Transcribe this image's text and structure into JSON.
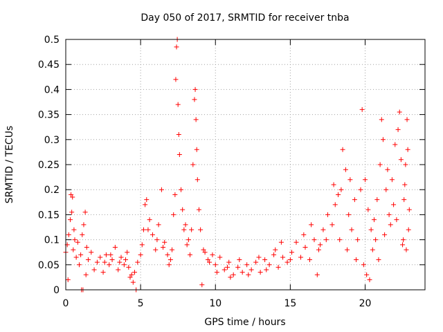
{
  "chart_data": {
    "type": "scatter",
    "title": "Day 050 of 2017, SRMTID for receiver tnba",
    "xlabel": "GPS time / hours",
    "ylabel": "SRMTID / TECUs",
    "xlim": [
      0,
      24
    ],
    "ylim": [
      0,
      0.5
    ],
    "xticks": [
      0,
      5,
      10,
      15,
      20
    ],
    "xtick_labels": [
      "0",
      "5",
      "10",
      "15",
      "20"
    ],
    "yticks": [
      0,
      0.05,
      0.1,
      0.15,
      0.2,
      0.25,
      0.3,
      0.35,
      0.4,
      0.45,
      0.5
    ],
    "ytick_labels": [
      "0",
      "0.05",
      "0.1",
      "0.15",
      "0.2",
      "0.25",
      "0.3",
      "0.35",
      "0.4",
      "0.45",
      "0.5"
    ],
    "grid": true,
    "marker": "plus",
    "marker_color": "#ff0000",
    "series": [
      {
        "name": "SRMTID",
        "points": [
          [
            0.0,
            0.075
          ],
          [
            0.1,
            0.09
          ],
          [
            0.2,
            0.11
          ],
          [
            0.3,
            0.14
          ],
          [
            0.35,
            0.19
          ],
          [
            0.4,
            0.155
          ],
          [
            0.45,
            0.185
          ],
          [
            0.5,
            0.08
          ],
          [
            0.55,
            0.12
          ],
          [
            0.6,
            0.1
          ],
          [
            0.7,
            0.065
          ],
          [
            0.8,
            0.095
          ],
          [
            0.9,
            0.05
          ],
          [
            1.0,
            0.07
          ],
          [
            1.1,
            0.11
          ],
          [
            1.2,
            0.13
          ],
          [
            1.3,
            0.155
          ],
          [
            1.4,
            0.085
          ],
          [
            1.5,
            0.06
          ],
          [
            1.7,
            0.075
          ],
          [
            1.9,
            0.04
          ],
          [
            2.1,
            0.055
          ],
          [
            2.3,
            0.065
          ],
          [
            2.5,
            0.035
          ],
          [
            2.7,
            0.07
          ],
          [
            2.9,
            0.05
          ],
          [
            3.1,
            0.06
          ],
          [
            3.3,
            0.085
          ],
          [
            3.5,
            0.04
          ],
          [
            3.7,
            0.065
          ],
          [
            3.9,
            0.05
          ],
          [
            4.1,
            0.075
          ],
          [
            4.3,
            0.025
          ],
          [
            4.4,
            0.03
          ],
          [
            4.5,
            0.015
          ],
          [
            4.6,
            0.035
          ],
          [
            4.8,
            0.055
          ],
          [
            5.0,
            0.07
          ],
          [
            5.1,
            0.09
          ],
          [
            5.2,
            0.12
          ],
          [
            5.3,
            0.17
          ],
          [
            5.4,
            0.18
          ],
          [
            5.6,
            0.14
          ],
          [
            5.8,
            0.11
          ],
          [
            6.0,
            0.08
          ],
          [
            6.2,
            0.13
          ],
          [
            6.4,
            0.2
          ],
          [
            6.6,
            0.095
          ],
          [
            6.8,
            0.07
          ],
          [
            7.0,
            0.06
          ],
          [
            7.1,
            0.08
          ],
          [
            7.2,
            0.15
          ],
          [
            7.3,
            0.19
          ],
          [
            7.35,
            0.42
          ],
          [
            7.4,
            0.485
          ],
          [
            7.45,
            0.5
          ],
          [
            7.5,
            0.37
          ],
          [
            7.55,
            0.31
          ],
          [
            7.6,
            0.27
          ],
          [
            7.7,
            0.2
          ],
          [
            7.8,
            0.16
          ],
          [
            8.0,
            0.13
          ],
          [
            8.2,
            0.1
          ],
          [
            8.4,
            0.12
          ],
          [
            8.5,
            0.25
          ],
          [
            8.6,
            0.38
          ],
          [
            8.65,
            0.4
          ],
          [
            8.7,
            0.34
          ],
          [
            8.75,
            0.28
          ],
          [
            8.8,
            0.22
          ],
          [
            8.9,
            0.16
          ],
          [
            9.0,
            0.12
          ],
          [
            9.2,
            0.08
          ],
          [
            9.5,
            0.06
          ],
          [
            9.8,
            0.07
          ],
          [
            10.0,
            0.05
          ],
          [
            10.3,
            0.065
          ],
          [
            10.6,
            0.04
          ],
          [
            10.9,
            0.055
          ],
          [
            11.2,
            0.03
          ],
          [
            11.5,
            0.045
          ],
          [
            11.8,
            0.035
          ],
          [
            12.1,
            0.05
          ],
          [
            12.4,
            0.04
          ],
          [
            12.7,
            0.055
          ],
          [
            13.0,
            0.035
          ],
          [
            13.3,
            0.06
          ],
          [
            13.6,
            0.05
          ],
          [
            13.9,
            0.07
          ],
          [
            14.2,
            0.045
          ],
          [
            14.5,
            0.065
          ],
          [
            14.8,
            0.055
          ],
          [
            15.1,
            0.075
          ],
          [
            15.4,
            0.095
          ],
          [
            15.7,
            0.065
          ],
          [
            16.0,
            0.085
          ],
          [
            16.3,
            0.06
          ],
          [
            16.6,
            0.1
          ],
          [
            16.9,
            0.08
          ],
          [
            17.2,
            0.12
          ],
          [
            17.5,
            0.15
          ],
          [
            17.8,
            0.13
          ],
          [
            18.0,
            0.17
          ],
          [
            18.2,
            0.19
          ],
          [
            18.4,
            0.2
          ],
          [
            18.5,
            0.28
          ],
          [
            18.7,
            0.24
          ],
          [
            18.9,
            0.15
          ],
          [
            19.1,
            0.12
          ],
          [
            19.3,
            0.18
          ],
          [
            19.5,
            0.1
          ],
          [
            19.7,
            0.2
          ],
          [
            19.8,
            0.36
          ],
          [
            20.0,
            0.22
          ],
          [
            20.2,
            0.16
          ],
          [
            20.4,
            0.12
          ],
          [
            20.6,
            0.14
          ],
          [
            20.8,
            0.18
          ],
          [
            21.0,
            0.25
          ],
          [
            21.1,
            0.34
          ],
          [
            21.2,
            0.3
          ],
          [
            21.4,
            0.2
          ],
          [
            21.6,
            0.15
          ],
          [
            21.8,
            0.22
          ],
          [
            22.0,
            0.29
          ],
          [
            22.2,
            0.32
          ],
          [
            22.3,
            0.355
          ],
          [
            22.4,
            0.26
          ],
          [
            22.5,
            0.09
          ],
          [
            22.6,
            0.18
          ],
          [
            22.7,
            0.25
          ],
          [
            22.8,
            0.34
          ],
          [
            22.9,
            0.12
          ],
          [
            0.15,
            0.02
          ],
          [
            1.05,
            0.0
          ],
          [
            1.15,
            0.0
          ],
          [
            1.35,
            0.03
          ],
          [
            2.6,
            0.055
          ],
          [
            3.0,
            0.07
          ],
          [
            3.6,
            0.055
          ],
          [
            4.0,
            0.06
          ],
          [
            4.2,
            0.045
          ],
          [
            4.7,
            0.0
          ],
          [
            5.5,
            0.12
          ],
          [
            6.1,
            0.1
          ],
          [
            6.5,
            0.085
          ],
          [
            6.9,
            0.05
          ],
          [
            7.9,
            0.12
          ],
          [
            8.1,
            0.09
          ],
          [
            8.3,
            0.07
          ],
          [
            9.1,
            0.01
          ],
          [
            9.3,
            0.075
          ],
          [
            9.6,
            0.055
          ],
          [
            10.1,
            0.035
          ],
          [
            10.8,
            0.045
          ],
          [
            11.0,
            0.025
          ],
          [
            11.6,
            0.06
          ],
          [
            12.2,
            0.03
          ],
          [
            12.9,
            0.065
          ],
          [
            13.4,
            0.04
          ],
          [
            14.0,
            0.08
          ],
          [
            14.4,
            0.095
          ],
          [
            15.0,
            0.06
          ],
          [
            15.9,
            0.11
          ],
          [
            16.4,
            0.13
          ],
          [
            16.8,
            0.03
          ],
          [
            17.0,
            0.09
          ],
          [
            17.4,
            0.1
          ],
          [
            17.9,
            0.21
          ],
          [
            18.3,
            0.1
          ],
          [
            18.8,
            0.08
          ],
          [
            19.0,
            0.22
          ],
          [
            19.4,
            0.06
          ],
          [
            19.9,
            0.05
          ],
          [
            20.1,
            0.03
          ],
          [
            20.3,
            0.02
          ],
          [
            20.5,
            0.08
          ],
          [
            20.7,
            0.1
          ],
          [
            20.9,
            0.06
          ],
          [
            21.3,
            0.11
          ],
          [
            21.5,
            0.24
          ],
          [
            21.7,
            0.13
          ],
          [
            21.9,
            0.17
          ],
          [
            22.1,
            0.14
          ],
          [
            22.55,
            0.1
          ],
          [
            22.65,
            0.21
          ],
          [
            22.75,
            0.08
          ],
          [
            22.85,
            0.28
          ],
          [
            22.95,
            0.16
          ]
        ]
      }
    ]
  }
}
